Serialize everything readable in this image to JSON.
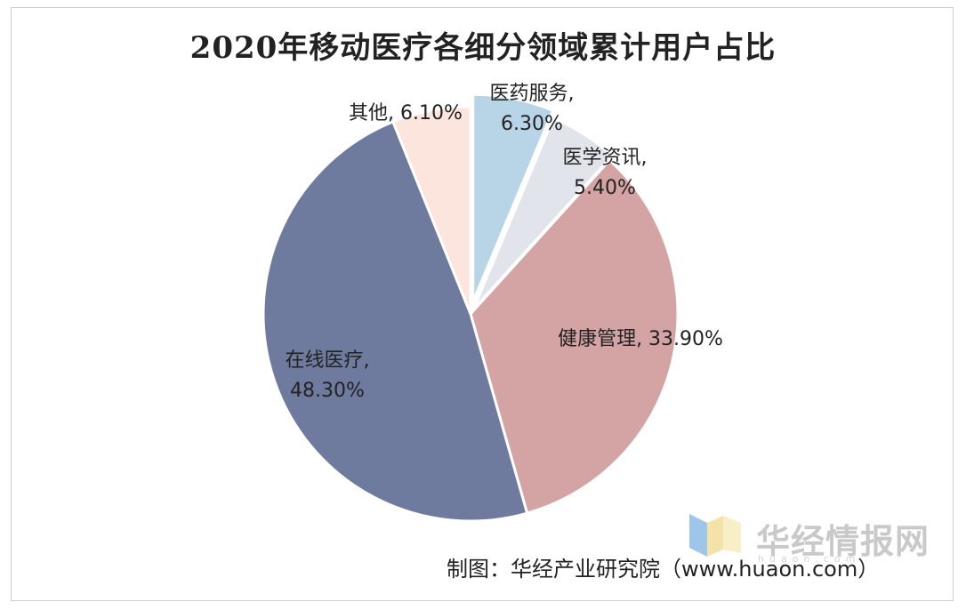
{
  "chart_data": {
    "type": "pie",
    "title": "2020年移动医疗各细分领域累计用户占比",
    "slices": [
      {
        "name": "医药服务",
        "value": 6.3,
        "label_lines": [
          "医药服务,",
          "6.30%"
        ],
        "color": "#b8d4e7"
      },
      {
        "name": "医学资讯",
        "value": 5.4,
        "label_lines": [
          "医学资讯,",
          "5.40%"
        ],
        "color": "#e2e4ec"
      },
      {
        "name": "健康管理",
        "value": 33.9,
        "label_lines": [
          "健康管理, 33.90%"
        ],
        "color": "#d4a3a3"
      },
      {
        "name": "在线医疗",
        "value": 48.3,
        "label_lines": [
          "在线医疗,",
          "48.30%"
        ],
        "color": "#6e7b9e"
      },
      {
        "name": "其他",
        "value": 6.1,
        "label_lines": [
          "其他, 6.10%"
        ],
        "color": "#fbe5dc"
      }
    ],
    "start": "12 o'clock",
    "direction": "clockwise"
  },
  "source": "制图：华经产业研究院（www.huaon.com）",
  "watermark": {
    "text": "华经情报网",
    "sub": "huaon.com"
  }
}
